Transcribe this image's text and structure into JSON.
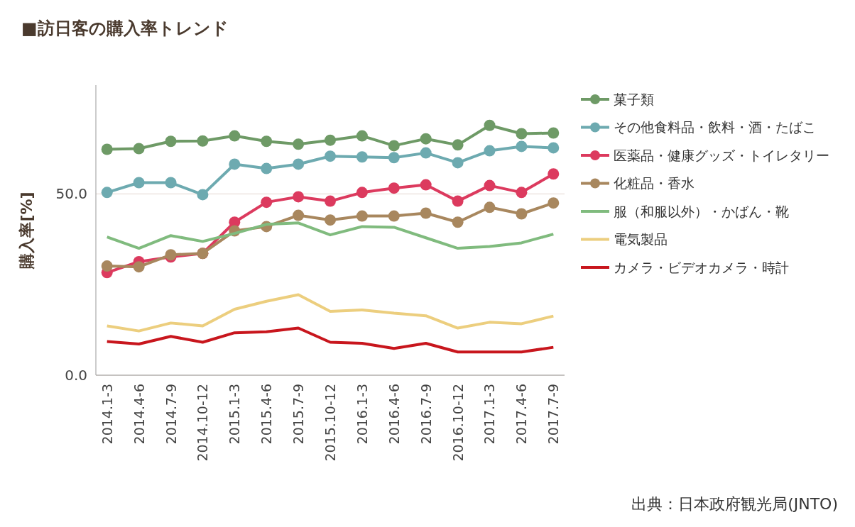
{
  "chart_data": {
    "type": "line",
    "title": "■訪日客の購入率トレンド",
    "ylabel": "購入率[%]",
    "categories": [
      "2014.1-3",
      "2014.4-6",
      "2014.7-9",
      "2014.10-12",
      "2015.1-3",
      "2015.4-6",
      "2015.7-9",
      "2015.10-12",
      "2016.1-3",
      "2016.4-6",
      "2016.7-9",
      "2016.10-12",
      "2017.1-3",
      "2017.4-6",
      "2017.7-9"
    ],
    "series": [
      {
        "name": "菓子類",
        "color": "#6e9a66",
        "marker": "circle",
        "values": [
          62.3,
          62.5,
          64.5,
          64.6,
          66.0,
          64.5,
          63.7,
          64.8,
          66.0,
          63.3,
          65.2,
          63.5,
          68.9,
          66.6,
          66.8
        ]
      },
      {
        "name": "その他食料品・飲料・酒・たばこ",
        "color": "#6daab0",
        "marker": "circle",
        "values": [
          50.4,
          53.1,
          53.1,
          49.8,
          58.2,
          57.0,
          58.2,
          60.4,
          60.2,
          60.0,
          61.3,
          58.6,
          61.9,
          63.1,
          62.7
        ]
      },
      {
        "name": "医薬品・健康グッズ・トイレタリー",
        "color": "#dc3a5e",
        "marker": "circle",
        "values": [
          28.3,
          31.3,
          32.6,
          33.6,
          42.2,
          47.7,
          49.2,
          48.0,
          50.4,
          51.6,
          52.5,
          48.0,
          52.3,
          50.4,
          55.5
        ]
      },
      {
        "name": "化粧品・香水",
        "color": "#a8875e",
        "marker": "circle",
        "values": [
          30.1,
          29.9,
          33.2,
          33.6,
          39.8,
          41.0,
          44.1,
          42.8,
          43.9,
          43.9,
          44.7,
          42.2,
          46.3,
          44.5,
          47.5
        ]
      },
      {
        "name": "服（和服以外）・かばん・靴",
        "color": "#80bb7e",
        "marker": "none",
        "values": [
          38.1,
          35.0,
          38.5,
          36.9,
          39.1,
          41.6,
          42.0,
          38.7,
          41.0,
          40.8,
          37.9,
          35.0,
          35.5,
          36.5,
          38.9
        ]
      },
      {
        "name": "電気製品",
        "color": "#ecce7e",
        "marker": "none",
        "values": [
          13.6,
          12.2,
          14.4,
          13.6,
          18.2,
          20.4,
          22.2,
          17.6,
          18.0,
          17.1,
          16.4,
          13.0,
          14.6,
          14.2,
          16.3
        ]
      },
      {
        "name": "カメラ・ビデオカメラ・時計",
        "color": "#c8161d",
        "marker": "none",
        "values": [
          9.3,
          8.6,
          10.7,
          9.1,
          11.7,
          12.0,
          13.0,
          9.1,
          8.8,
          7.4,
          8.8,
          6.4,
          6.4,
          6.4,
          7.7
        ]
      }
    ],
    "ylim": [
      0,
      80
    ],
    "yticks": [
      {
        "value": 0,
        "label": "0.0"
      },
      {
        "value": 50,
        "label": "50.0"
      }
    ],
    "grid": "y",
    "legend": "right",
    "annotations": [
      "出典：日本政府観光局(JNTO)"
    ]
  }
}
